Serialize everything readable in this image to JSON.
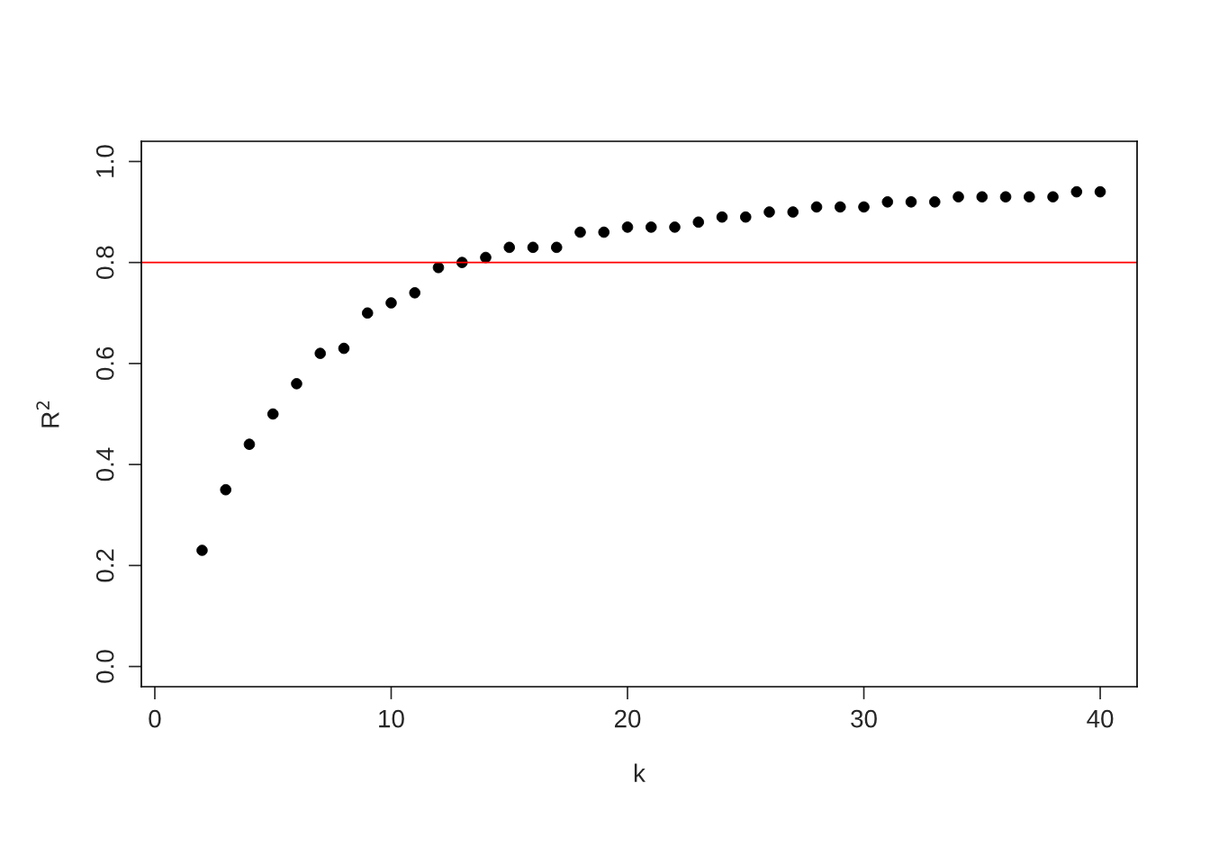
{
  "chart_data": {
    "type": "scatter",
    "xlabel": "k",
    "ylabel": "R$^{2}$",
    "x": [
      2,
      3,
      4,
      5,
      6,
      7,
      8,
      9,
      10,
      11,
      12,
      13,
      14,
      15,
      16,
      17,
      18,
      19,
      20,
      21,
      22,
      23,
      24,
      25,
      26,
      27,
      28,
      29,
      30,
      31,
      32,
      33,
      34,
      35,
      36,
      37,
      38,
      39,
      40
    ],
    "series": [
      {
        "color": "#000000",
        "values": [
          0.23,
          0.35,
          0.44,
          0.5,
          0.56,
          0.62,
          0.63,
          0.7,
          0.72,
          0.74,
          0.79,
          0.8,
          0.81,
          0.83,
          0.83,
          0.83,
          0.86,
          0.86,
          0.87,
          0.87,
          0.87,
          0.88,
          0.89,
          0.89,
          0.9,
          0.9,
          0.91,
          0.91,
          0.91,
          0.92,
          0.92,
          0.92,
          0.93,
          0.93,
          0.93,
          0.93,
          0.93,
          0.94,
          0.94
        ]
      }
    ],
    "marker": "circle",
    "xlim": [
      -0.57,
      41.56
    ],
    "ylim": [
      -0.04,
      1.04
    ],
    "xticks": [
      0,
      10,
      20,
      30,
      40
    ],
    "yticks": [
      {
        "value": 0,
        "label": "0.0"
      },
      0.2,
      0.4,
      0.6,
      0.8,
      {
        "value": 1,
        "label": "1.0"
      }
    ],
    "ref_lines": [
      {
        "axis": "y",
        "value": 0.8,
        "color": "#ff0000"
      }
    ],
    "grid": false,
    "legend": false
  }
}
